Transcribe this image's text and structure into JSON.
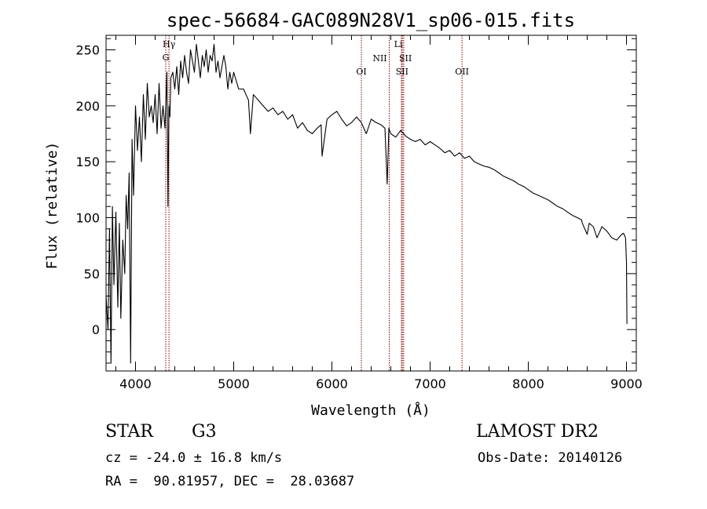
{
  "chart_data": {
    "type": "line",
    "title": "spec-56684-GAC089N28V1_sp06-015.fits",
    "xlabel": "Wavelength (Å)",
    "ylabel": "Flux (relative)",
    "xlim": [
      3700,
      9100
    ],
    "ylim": [
      -37,
      263
    ],
    "xticks": [
      4000,
      5000,
      6000,
      7000,
      8000,
      9000
    ],
    "yticks": [
      0,
      50,
      100,
      150,
      200,
      250
    ],
    "grid": false,
    "line_color": "#000000",
    "marker_color": "#8b0000",
    "series": [
      {
        "x": [
          3700,
          3720,
          3735,
          3750,
          3765,
          3780,
          3800,
          3820,
          3835,
          3850,
          3870,
          3890,
          3905,
          3920,
          3935,
          3950,
          3965,
          3980,
          4000,
          4020,
          4040,
          4060,
          4080,
          4100,
          4120,
          4140,
          4160,
          4180,
          4200,
          4220,
          4240,
          4260,
          4280,
          4300,
          4320,
          4330,
          4340,
          4350,
          4360,
          4380,
          4400,
          4420,
          4440,
          4460,
          4480,
          4500,
          4520,
          4540,
          4560,
          4580,
          4600,
          4620,
          4640,
          4660,
          4680,
          4700,
          4720,
          4740,
          4760,
          4780,
          4800,
          4820,
          4840,
          4860,
          4880,
          4900,
          4920,
          4940,
          4960,
          4980,
          5000,
          5050,
          5100,
          5150,
          5170,
          5200,
          5250,
          5300,
          5350,
          5400,
          5450,
          5500,
          5550,
          5600,
          5650,
          5700,
          5750,
          5800,
          5850,
          5890,
          5900,
          5950,
          6000,
          6050,
          6100,
          6150,
          6200,
          6250,
          6300,
          6350,
          6400,
          6450,
          6500,
          6540,
          6563,
          6580,
          6600,
          6650,
          6700,
          6750,
          6800,
          6850,
          6900,
          6950,
          7000,
          7050,
          7100,
          7150,
          7200,
          7250,
          7300,
          7350,
          7400,
          7450,
          7500,
          7550,
          7600,
          7650,
          7700,
          7750,
          7800,
          7850,
          7900,
          7950,
          8000,
          8050,
          8100,
          8150,
          8200,
          8250,
          8300,
          8350,
          8400,
          8450,
          8500,
          8542,
          8550,
          8600,
          8620,
          8662,
          8700,
          8750,
          8800,
          8850,
          8900,
          8950,
          8970,
          8990,
          9000,
          9005
        ],
        "y": [
          30,
          0,
          90,
          -30,
          110,
          40,
          105,
          20,
          95,
          10,
          80,
          50,
          120,
          90,
          140,
          -30,
          170,
          120,
          200,
          160,
          190,
          150,
          210,
          170,
          220,
          190,
          200,
          185,
          210,
          175,
          220,
          180,
          200,
          180,
          230,
          110,
          200,
          190,
          225,
          230,
          215,
          235,
          210,
          240,
          225,
          245,
          230,
          220,
          250,
          240,
          230,
          255,
          240,
          225,
          245,
          235,
          250,
          230,
          245,
          240,
          255,
          230,
          240,
          225,
          235,
          245,
          235,
          215,
          230,
          220,
          230,
          215,
          215,
          205,
          175,
          210,
          205,
          200,
          195,
          198,
          192,
          195,
          188,
          192,
          180,
          185,
          178,
          175,
          180,
          183,
          155,
          188,
          192,
          195,
          188,
          182,
          185,
          190,
          185,
          175,
          188,
          185,
          183,
          180,
          130,
          180,
          175,
          172,
          178,
          173,
          170,
          168,
          170,
          165,
          168,
          165,
          162,
          158,
          160,
          155,
          158,
          153,
          155,
          150,
          148,
          146,
          145,
          143,
          140,
          137,
          135,
          133,
          130,
          128,
          125,
          122,
          120,
          118,
          116,
          113,
          110,
          108,
          105,
          102,
          100,
          98,
          95,
          85,
          95,
          92,
          82,
          92,
          88,
          82,
          80,
          85,
          86,
          82,
          60,
          5
        ]
      }
    ],
    "line_markers": [
      {
        "x": 4308,
        "labels": [
          "G"
        ]
      },
      {
        "x": 4341,
        "labels": [
          "Hγ"
        ]
      },
      {
        "x": 6300,
        "labels": [
          "OI"
        ]
      },
      {
        "x": 6584,
        "labels": [
          "NII"
        ]
      },
      {
        "x": 6708,
        "labels": [
          "Li"
        ]
      },
      {
        "x": 6717,
        "labels": [
          "SII"
        ]
      },
      {
        "x": 6731,
        "labels": [
          "SII"
        ]
      },
      {
        "x": 7325,
        "labels": [
          "OII"
        ]
      }
    ]
  },
  "info": {
    "object_class": "STAR",
    "subclass": "G3",
    "survey": "LAMOST DR2",
    "cz": "cz = -24.0 ± 16.8 km/s",
    "obs_date": "Obs-Date: 20140126",
    "coords": "RA =  90.81957, DEC =  28.03687"
  }
}
